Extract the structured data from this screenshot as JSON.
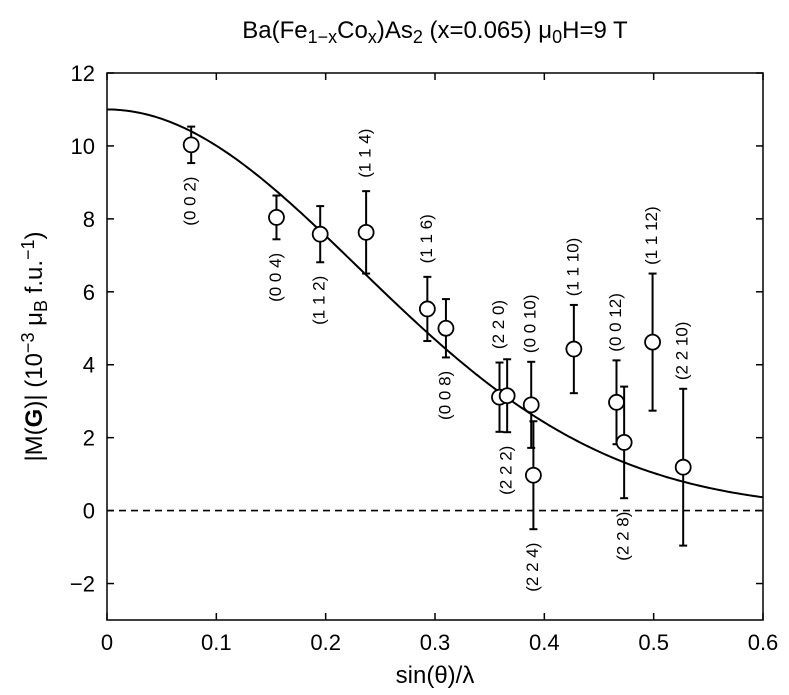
{
  "chart_data": {
    "type": "scatter",
    "title": {
      "parts": [
        {
          "t": "Ba(Fe"
        },
        {
          "t": "1−x",
          "sub": true
        },
        {
          "t": "Co"
        },
        {
          "t": "x",
          "sub": true
        },
        {
          "t": ")As"
        },
        {
          "t": "2",
          "sub": true
        },
        {
          "t": " (x=0.065) μ"
        },
        {
          "t": "0",
          "sub": true
        },
        {
          "t": "H=9 T"
        }
      ]
    },
    "xlabel": "sin(θ)/λ",
    "ylabel": {
      "parts": [
        {
          "t": "|M("
        },
        {
          "t": "G",
          "bold": true
        },
        {
          "t": ")| (10"
        },
        {
          "t": "−3",
          "sup": true
        },
        {
          "t": " μ"
        },
        {
          "t": "B",
          "sub": true
        },
        {
          "t": " f.u."
        },
        {
          "t": "−1",
          "sup": true
        },
        {
          "t": ")"
        }
      ]
    },
    "xlim": [
      0,
      0.6
    ],
    "ylim": [
      -3,
      12
    ],
    "xticks": [
      0,
      0.1,
      0.2,
      0.3,
      0.4,
      0.5,
      0.6
    ],
    "xtick_labels": [
      "0",
      "0.1",
      "0.2",
      "0.3",
      "0.4",
      "0.5",
      "0.6"
    ],
    "yticks": [
      -2,
      0,
      2,
      4,
      6,
      8,
      10,
      12
    ],
    "ytick_labels": [
      "−2",
      "0",
      "2",
      "4",
      "6",
      "8",
      "10",
      "12"
    ],
    "points": [
      {
        "x": 0.077,
        "y": 10.03,
        "err": 0.5,
        "label": "(0 0 2)",
        "pos": "below"
      },
      {
        "x": 0.155,
        "y": 8.04,
        "err": 0.6,
        "label": "(0 0 4)",
        "pos": "below"
      },
      {
        "x": 0.195,
        "y": 7.58,
        "err": 0.77,
        "label": "(1 1 2)",
        "pos": "below"
      },
      {
        "x": 0.237,
        "y": 7.63,
        "err": 1.13,
        "label": "(1 1 4)",
        "pos": "above"
      },
      {
        "x": 0.293,
        "y": 5.53,
        "err": 0.88,
        "label": "(1 1 6)",
        "pos": "above"
      },
      {
        "x": 0.31,
        "y": 5.0,
        "err": 0.8,
        "label": "(0 0 8)",
        "pos": "below"
      },
      {
        "x": 0.359,
        "y": 3.11,
        "err": 0.95,
        "label": "(2 2 0)",
        "pos": "above"
      },
      {
        "x": 0.366,
        "y": 3.15,
        "err": 1.0,
        "label": "(2 2 2)",
        "pos": "below"
      },
      {
        "x": 0.388,
        "y": 2.9,
        "err": 1.18,
        "label": "(0 0 10)",
        "pos": "above"
      },
      {
        "x": 0.39,
        "y": 0.97,
        "err": 1.48,
        "label": "(2 2 4)",
        "pos": "below"
      },
      {
        "x": 0.427,
        "y": 4.43,
        "err": 1.21,
        "label": "(1 1 10)",
        "pos": "above"
      },
      {
        "x": 0.466,
        "y": 2.97,
        "err": 1.15,
        "label": "(0 0 12)",
        "pos": "above"
      },
      {
        "x": 0.473,
        "y": 1.87,
        "err": 1.53,
        "label": "(2 2 8)",
        "pos": "below"
      },
      {
        "x": 0.499,
        "y": 4.62,
        "err": 1.88,
        "label": "(1 1 12)",
        "pos": "above"
      },
      {
        "x": 0.527,
        "y": 1.19,
        "err": 2.15,
        "label": "(2 2 10)",
        "pos": "above"
      }
    ],
    "fit_curve": {
      "type": "gaussian",
      "amplitude": 11.0,
      "width": 0.325,
      "description": "|M(G)| = A·exp(−(s/w)²)"
    },
    "reference_line": {
      "y": 0,
      "style": "dashed"
    }
  }
}
